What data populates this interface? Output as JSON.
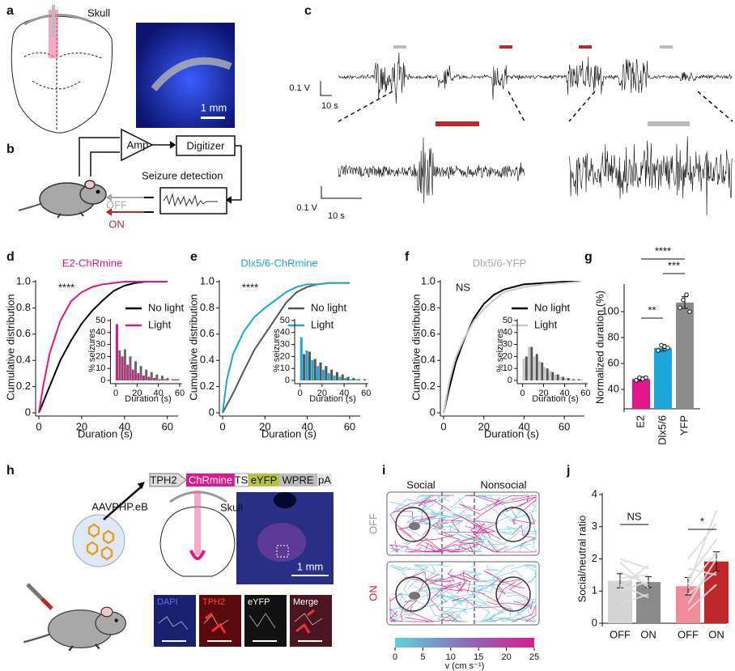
{
  "panel_a": {
    "label": "a",
    "skull": "Skull",
    "scale_bar": "1 mm"
  },
  "panel_b": {
    "label": "b",
    "amplifier": "Amp",
    "digitizer": "Digitizer",
    "detection": "Seizure detection",
    "off": "OFF",
    "on": "ON"
  },
  "panel_c": {
    "label": "c",
    "voltage_scale": "0.1 V",
    "time_scale": "10 s",
    "zoom_voltage_scale": "0.1 V",
    "zoom_time_scale": "10 s"
  },
  "chart_data": [
    {
      "type": "line",
      "panel": "d",
      "title": "E2-ChRmine",
      "title_color": "#e0168a",
      "annotation": "****",
      "xlabel": "Duration (s)",
      "ylabel": "Cumulative distribution",
      "x": [
        0,
        2,
        5,
        10,
        15,
        20,
        25,
        30,
        35,
        40,
        45,
        50,
        60
      ],
      "series": [
        {
          "name": "No light",
          "color": "#000000",
          "values": [
            0,
            0.08,
            0.2,
            0.4,
            0.55,
            0.68,
            0.78,
            0.86,
            0.93,
            0.97,
            0.99,
            1.0,
            1.0
          ]
        },
        {
          "name": "Light",
          "color": "#e0168a",
          "values": [
            0,
            0.2,
            0.45,
            0.7,
            0.85,
            0.92,
            0.96,
            0.98,
            0.99,
            1.0,
            1.0,
            1.0,
            1.0
          ]
        }
      ],
      "xlim": [
        0,
        65
      ],
      "ylim": [
        0,
        1
      ],
      "xticks": [
        0,
        20,
        40,
        60
      ],
      "yticks": [
        0,
        0.2,
        0.4,
        0.6,
        0.8,
        {
          "value": 1,
          "label": "1.0"
        }
      ],
      "legend": "right"
    },
    {
      "type": "histogram",
      "xlabel": "Duration (s)",
      "ylabel": "% seizures",
      "bins": [
        0,
        5,
        10,
        15,
        20,
        25,
        30,
        35,
        40,
        45,
        50,
        55,
        60
      ],
      "series": [
        {
          "color": "#e0168a",
          "values": [
            47,
            20,
            13,
            9,
            6,
            4,
            3,
            2,
            1,
            1,
            0,
            1
          ]
        },
        {
          "color": "#666666",
          "values": [
            25,
            26,
            20,
            16,
            12,
            9,
            7,
            5,
            4,
            2,
            1,
            1
          ]
        }
      ],
      "xlim": [
        -2,
        62
      ],
      "ylim": [
        0,
        50
      ],
      "xticks": [
        0,
        20,
        40,
        60
      ],
      "yticks": [
        0,
        10,
        20,
        30,
        40,
        50
      ]
    },
    {
      "type": "line",
      "panel": "e",
      "title": "Dlx5/6-ChRmine",
      "title_color": "#1ba8d9",
      "annotation": "****",
      "xlabel": "Duration (s)",
      "ylabel": "Cumulative distribution",
      "x": [
        0,
        2,
        5,
        10,
        15,
        20,
        25,
        30,
        35,
        40,
        45,
        50,
        60
      ],
      "series": [
        {
          "name": "No light",
          "color": "#555555",
          "values": [
            0,
            0.06,
            0.15,
            0.32,
            0.48,
            0.6,
            0.72,
            0.84,
            0.92,
            0.96,
            0.98,
            0.99,
            0.99
          ]
        },
        {
          "name": "Light",
          "color": "#1ba8d9",
          "values": [
            0,
            0.25,
            0.45,
            0.62,
            0.73,
            0.8,
            0.86,
            0.92,
            0.96,
            0.98,
            0.98,
            0.99,
            0.99
          ]
        }
      ],
      "xlim": [
        0,
        65
      ],
      "ylim": [
        0,
        1
      ],
      "xticks": [
        0,
        20,
        40,
        60
      ],
      "yticks": [
        0,
        0.2,
        0.4,
        0.6,
        0.8,
        {
          "value": 1,
          "label": "1.0"
        }
      ],
      "legend": "right"
    },
    {
      "type": "histogram",
      "xlabel": "Duration (s)",
      "ylabel": "% seizures",
      "bins": [
        0,
        5,
        10,
        15,
        20,
        25,
        30,
        35,
        40,
        45,
        50,
        55,
        60
      ],
      "series": [
        {
          "color": "#1ba8d9",
          "values": [
            36,
            25,
            17,
            12,
            9,
            6,
            4,
            3,
            2,
            1,
            1,
            0
          ]
        },
        {
          "color": "#555555",
          "values": [
            22,
            24,
            18,
            15,
            12,
            9,
            7,
            5,
            3,
            2,
            1,
            1
          ]
        }
      ],
      "xlim": [
        -2,
        62
      ],
      "ylim": [
        0,
        50
      ],
      "xticks": [
        0,
        20,
        40,
        60
      ],
      "yticks": [
        0,
        10,
        20,
        30,
        40,
        50
      ]
    },
    {
      "type": "line",
      "panel": "f",
      "title": "Dlx5/6-YFP",
      "title_color": "#aaaaaa",
      "annotation": "NS",
      "xlabel": "Duration (s)",
      "ylabel": "Cumulative distribution",
      "x": [
        0,
        3,
        6,
        10,
        15,
        20,
        25,
        30,
        40,
        50,
        60,
        68
      ],
      "series": [
        {
          "name": "No light",
          "color": "#000000",
          "values": [
            0,
            0.2,
            0.38,
            0.55,
            0.72,
            0.83,
            0.9,
            0.94,
            0.98,
            0.99,
            1.0,
            1.0
          ]
        },
        {
          "name": "Light",
          "color": "#c8c8c8",
          "values": [
            0,
            0.25,
            0.42,
            0.56,
            0.7,
            0.79,
            0.86,
            0.92,
            0.96,
            0.98,
            0.99,
            1.0
          ]
        }
      ],
      "xlim": [
        0,
        70
      ],
      "ylim": [
        0,
        1
      ],
      "xticks": [
        0,
        20,
        40,
        60
      ],
      "yticks": [
        0,
        0.2,
        0.4,
        0.6,
        0.8,
        {
          "value": 1,
          "label": "1.0"
        }
      ],
      "legend": "right"
    },
    {
      "type": "histogram",
      "xlabel": "Duration (s)",
      "ylabel": "% seizures",
      "bins": [
        0,
        5,
        10,
        15,
        20,
        25,
        30,
        35,
        40,
        45,
        50,
        55,
        60
      ],
      "series": [
        {
          "color": "#c8c8c8",
          "values": [
            18,
            28,
            20,
            16,
            11,
            8,
            5,
            3,
            2,
            1,
            0,
            1
          ]
        },
        {
          "color": "#555555",
          "values": [
            20,
            28,
            22,
            15,
            10,
            7,
            5,
            3,
            2,
            1,
            1,
            0
          ]
        }
      ],
      "xlim": [
        -2,
        62
      ],
      "ylim": [
        0,
        50
      ],
      "xticks": [
        0,
        20,
        40,
        60
      ],
      "yticks": [
        0,
        10,
        20,
        30,
        40,
        50
      ]
    },
    {
      "type": "bar",
      "panel": "g",
      "ylabel": "Normalized duration (%)",
      "categories": [
        "E2",
        "Dlx5/6",
        "YFP"
      ],
      "values": [
        48,
        72,
        107
      ],
      "errors": [
        1.5,
        2.5,
        4.5
      ],
      "points": [
        [
          47,
          49,
          48,
          49
        ],
        [
          70,
          74,
          73,
          72
        ],
        [
          103,
          109,
          113,
          100
        ]
      ],
      "colors": [
        "#e0168a",
        "#1ba8d9",
        "#8c8c8c"
      ],
      "ylim": [
        25,
        120
      ],
      "yticks": [
        40,
        60,
        80,
        100
      ],
      "significance": [
        "**",
        "***",
        "****"
      ]
    },
    {
      "type": "bar",
      "panel": "j",
      "ylabel": "Social/neutral ratio",
      "categories": [
        "OFF",
        "ON",
        "OFF",
        "ON"
      ],
      "values": [
        1.32,
        1.28,
        1.15,
        1.92
      ],
      "errors": [
        0.22,
        0.17,
        0.27,
        0.3
      ],
      "subjects": [
        [
          0.6,
          1.0,
          1.2,
          1.4,
          1.6,
          1.9,
          2.0,
          1.1
        ],
        [
          0.9,
          1.3,
          0.8,
          1.5,
          1.2,
          1.1,
          1.7,
          1.8
        ],
        [
          0.4,
          0.6,
          0.9,
          1.2,
          1.4,
          1.7,
          2.0,
          1.1
        ],
        [
          1.2,
          2.0,
          1.6,
          3.5,
          2.6,
          1.5,
          3.1,
          2.2
        ]
      ],
      "colors": [
        "#d4d4d4",
        "#8a8a8a",
        "#f08a96",
        "#c0272d"
      ],
      "ylim": [
        0,
        4
      ],
      "yticks": [
        0,
        1,
        2,
        3,
        4
      ],
      "significance": [
        "NS",
        "*"
      ]
    }
  ],
  "panel_h": {
    "label": "h",
    "construct": [
      "TPH2",
      "ChRmine",
      "TS",
      "eYFP",
      "WPRE",
      "pA"
    ],
    "virus": "AAVPHP.eB",
    "skull": "Skull",
    "scale_bar": "1 mm",
    "channels": [
      "DAPI",
      "TPH2",
      "eYFP",
      "Merge"
    ]
  },
  "panel_i": {
    "label": "i",
    "zones": [
      "Social",
      "Nonsocial"
    ],
    "conditions": [
      "OFF",
      "ON"
    ],
    "colorbar_label": "v (cm s⁻¹)",
    "colorbar_lim": [
      0,
      25
    ],
    "colorbar_ticks": [
      0,
      5,
      10,
      15,
      20,
      25
    ]
  }
}
